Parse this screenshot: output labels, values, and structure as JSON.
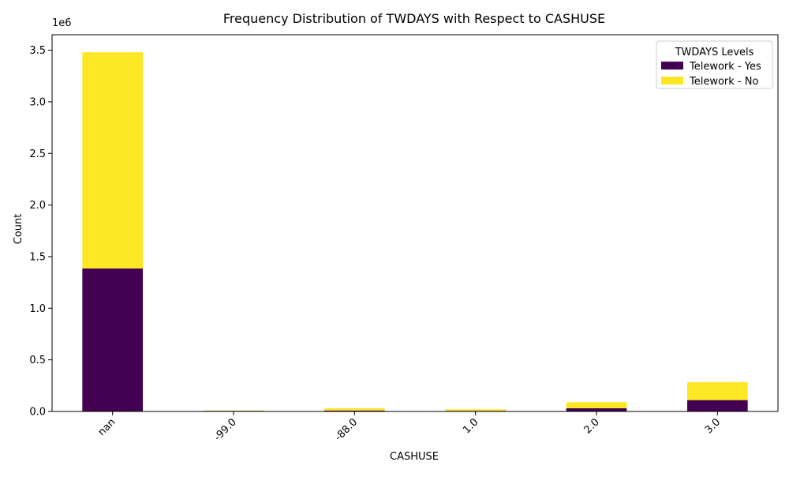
{
  "chart_data": {
    "type": "bar",
    "stacked": true,
    "title": "Frequency Distribution of TWDAYS with Respect to CASHUSE",
    "xlabel": "CASHUSE",
    "ylabel": "Count",
    "y_multiplier_label": "1e6",
    "categories": [
      "nan",
      "-99.0",
      "-88.0",
      "1.0",
      "2.0",
      "3.0"
    ],
    "series": [
      {
        "name": "Telework - Yes",
        "color": "#440154",
        "values": [
          1385000,
          6000,
          9000,
          6000,
          31000,
          110000
        ]
      },
      {
        "name": "Telework - No",
        "color": "#fde725",
        "values": [
          2095000,
          3000,
          21000,
          14000,
          59000,
          174000
        ]
      }
    ],
    "ylim": [
      0,
      3650000
    ],
    "yticks": [
      0,
      500000,
      1000000,
      1500000,
      2000000,
      2500000,
      3000000,
      3500000
    ],
    "ytick_labels": [
      "0.0",
      "0.5",
      "1.0",
      "1.5",
      "2.0",
      "2.5",
      "3.0",
      "3.5"
    ],
    "legend": {
      "title": "TWDAYS Levels",
      "position": "top-right"
    },
    "grid": false
  }
}
